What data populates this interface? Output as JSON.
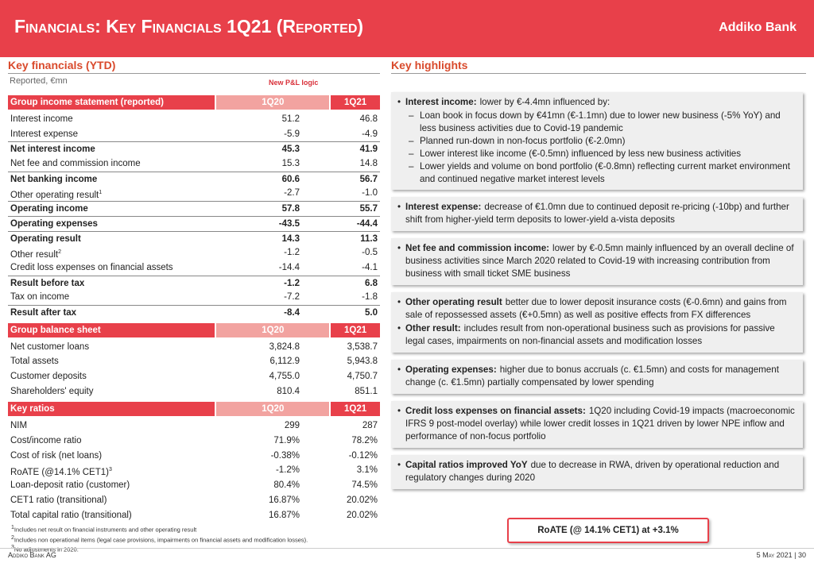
{
  "header": {
    "title": "Financials: Key Financials 1Q21 (Reported)",
    "logo": "Addiko Bank"
  },
  "key_financials": {
    "title": "Key financials (YTD)",
    "unit": "Reported, €mn",
    "note": "New P&L logic",
    "sections": [
      {
        "label": "Group income statement (reported)",
        "columns": [
          "1Q20",
          "1Q21"
        ],
        "rows": [
          {
            "label": "Interest income",
            "values": [
              "51.2",
              "46.8"
            ]
          },
          {
            "label": "Interest expense",
            "values": [
              "-5.9",
              "-4.9"
            ]
          },
          {
            "label": "Net interest income",
            "values": [
              "45.3",
              "41.9"
            ],
            "bold": true
          },
          {
            "label": "Net fee and commission income",
            "values": [
              "15.3",
              "14.8"
            ]
          },
          {
            "label": "Net banking income",
            "values": [
              "60.6",
              "56.7"
            ],
            "bold": true
          },
          {
            "label": "Other operating result",
            "sup": "1",
            "values": [
              "-2.7",
              "-1.0"
            ]
          },
          {
            "label": "Operating income",
            "values": [
              "57.8",
              "55.7"
            ],
            "bold": true
          },
          {
            "label": "Operating expenses",
            "values": [
              "-43.5",
              "-44.4"
            ],
            "bold": true
          },
          {
            "label": "Operating result",
            "values": [
              "14.3",
              "11.3"
            ],
            "bold": true
          },
          {
            "label": "Other result",
            "sup": "2",
            "values": [
              "-1.2",
              "-0.5"
            ]
          },
          {
            "label": "Credit loss expenses on financial assets",
            "values": [
              "-14.4",
              "-4.1"
            ]
          },
          {
            "label": "Result before tax",
            "values": [
              "-1.2",
              "6.8"
            ],
            "bold": true
          },
          {
            "label": "Tax on income",
            "values": [
              "-7.2",
              "-1.8"
            ]
          },
          {
            "label": "Result after tax",
            "values": [
              "-8.4",
              "5.0"
            ],
            "bold": true
          }
        ]
      },
      {
        "label": "Group balance sheet",
        "columns": [
          "1Q20",
          "1Q21"
        ],
        "rows": [
          {
            "label": "Net customer loans",
            "values": [
              "3,824.8",
              "3,538.7"
            ]
          },
          {
            "label": "Total assets",
            "values": [
              "6,112.9",
              "5,943.8"
            ]
          },
          {
            "label": "Customer deposits",
            "values": [
              "4,755.0",
              "4,750.7"
            ]
          },
          {
            "label": "Shareholders' equity",
            "values": [
              "810.4",
              "851.1"
            ]
          }
        ]
      },
      {
        "label": "Key ratios",
        "columns": [
          "1Q20",
          "1Q21"
        ],
        "rows": [
          {
            "label": "NIM",
            "values": [
              "299",
              "287"
            ]
          },
          {
            "label": "Cost/income ratio",
            "values": [
              "71.9%",
              "78.2%"
            ]
          },
          {
            "label": "Cost of risk (net loans)",
            "values": [
              "-0.38%",
              "-0.12%"
            ]
          },
          {
            "label": "RoATE (@14.1% CET1)",
            "sup": "3",
            "values": [
              "-1.2%",
              "3.1%"
            ]
          },
          {
            "label": "Loan-deposit ratio (customer)",
            "values": [
              "80.4%",
              "74.5%"
            ]
          },
          {
            "label": "CET1 ratio (transitional)",
            "values": [
              "16.87%",
              "20.02%"
            ]
          },
          {
            "label": "Total capital ratio (transitional)",
            "values": [
              "16.87%",
              "20.02%"
            ]
          }
        ]
      }
    ],
    "footnotes": [
      {
        "marker": "1",
        "text": "Includes net result on financial instruments and other operating result"
      },
      {
        "marker": "2",
        "text": "Includes non operational items (legal case provisions, impairments on financial assets and modification losses)."
      },
      {
        "marker": "3",
        "text": "No adjustments in 2020."
      }
    ]
  },
  "highlights": {
    "title": "Key highlights",
    "boxes": [
      {
        "bullets": [
          {
            "lead": "Interest income:",
            "text": "lower by €-4.4mn influenced by:",
            "subitems": [
              "Loan book in focus down by €41mn (€-1.1mn) due to lower new business (-5% YoY) and less business activities due to Covid-19 pandemic",
              "Planned run-down in non-focus portfolio (€-2.0mn)",
              "Lower interest like income (€-0.5mn) influenced by less new business activities",
              "Lower yields and volume on bond portfolio (€-0.8mn) reflecting current market environment and continued negative market interest levels"
            ]
          }
        ]
      },
      {
        "bullets": [
          {
            "lead": "Interest expense:",
            "text": "decrease of €1.0mn due to continued deposit re-pricing (-10bp) and further shift from higher-yield term deposits to lower-yield a-vista deposits"
          }
        ]
      },
      {
        "bullets": [
          {
            "lead": "Net fee and commission income:",
            "text": "lower by €-0.5mn mainly influenced by an overall decline of business activities since March 2020 related to Covid-19 with increasing contribution from business with small ticket SME business"
          }
        ]
      },
      {
        "bullets": [
          {
            "lead": "Other operating result",
            "text": "better due to lower deposit insurance costs (€-0.6mn) and gains from sale of repossessed assets (€+0.5mn) as well as positive effects from FX differences"
          },
          {
            "lead": "Other result:",
            "text": "includes result from non-operational business such as provisions for passive legal cases, impairments on non-financial assets and modification losses"
          }
        ]
      },
      {
        "bullets": [
          {
            "lead": "Operating expenses:",
            "text": "higher due to bonus accruals (c. €1.5mn) and costs for management change (c. €1.5mn) partially compensated by lower spending"
          }
        ]
      },
      {
        "bullets": [
          {
            "lead": "Credit loss expenses on financial assets:",
            "text": "1Q20 including Covid-19 impacts (macroeconomic IFRS 9 post-model overlay) while lower credit losses in 1Q21 driven by lower NPE inflow and performance of non-focus portfolio"
          }
        ]
      },
      {
        "bullets": [
          {
            "lead": "Capital ratios improved YoY",
            "text": "due to decrease in RWA, driven by operational reduction and regulatory changes during 2020"
          }
        ]
      }
    ],
    "callout": "RoATE (@ 14.1% CET1) at +3.1%"
  },
  "footer": {
    "left": "Addiko Bank AG",
    "right": "5 May 2021 | 30"
  }
}
